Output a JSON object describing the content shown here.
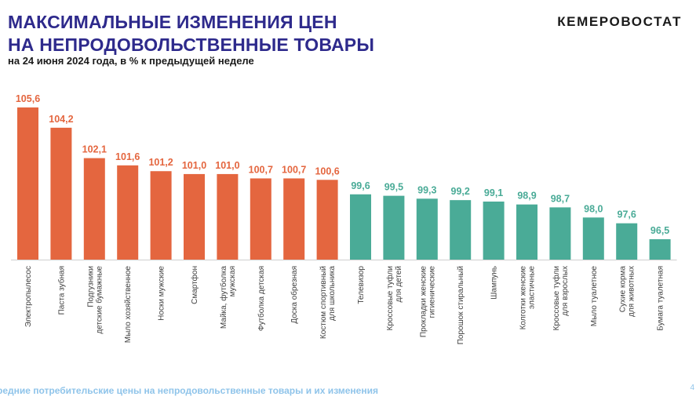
{
  "header": {
    "title_line1": "МАКСИМАЛЬНЫЕ ИЗМЕНЕНИЯ ЦЕН",
    "title_line2": "НА НЕПРОДОВОЛЬСТВЕННЫЕ ТОВАРЫ",
    "subtitle": "на 24 июня 2024 года, в % к предыдущей неделе",
    "brand": "КЕМЕРОВОСТАТ"
  },
  "footer": {
    "text": "редние потребительские цены на непродовольственные товары и их изменения",
    "page_number": "4"
  },
  "colors": {
    "increase": "#e4663f",
    "decrease": "#4aab97",
    "title": "#2e2a8c"
  },
  "chart_data": {
    "type": "bar",
    "title": "",
    "xlabel": "",
    "ylabel": "",
    "grid": false,
    "legend": "none",
    "value_labels": [
      "105,6",
      "104,2",
      "102,1",
      "101,6",
      "101,2",
      "101,0",
      "101,0",
      "100,7",
      "100,7",
      "100,6",
      "99,6",
      "99,5",
      "99,3",
      "99,2",
      "99,1",
      "98,9",
      "98,7",
      "98,0",
      "97,6",
      "96,5"
    ],
    "values": [
      105.6,
      104.2,
      102.1,
      101.6,
      101.2,
      101.0,
      101.0,
      100.7,
      100.7,
      100.6,
      99.6,
      99.5,
      99.3,
      99.2,
      99.1,
      98.9,
      98.7,
      98.0,
      97.6,
      96.5
    ],
    "categories": [
      [
        "Электропылесос"
      ],
      [
        "Паста зубная"
      ],
      [
        "Подгузники",
        "детские бумажные"
      ],
      [
        "Мыло хозяйственное"
      ],
      [
        "Носки мужские"
      ],
      [
        "Смартфон"
      ],
      [
        "Майка, футболка",
        "мужская"
      ],
      [
        "Футболка детская"
      ],
      [
        "Доска обрезная"
      ],
      [
        "Костюм спортивный",
        "для школьника"
      ],
      [
        "Телевизор"
      ],
      [
        "Кроссовые туфли",
        "для детей"
      ],
      [
        "Прокладки женские",
        "гигиенические"
      ],
      [
        "Порошок стиральный"
      ],
      [
        "Шампунь"
      ],
      [
        "Колготки женские",
        "эластичные"
      ],
      [
        "Кроссовые туфли",
        "для взрослых"
      ],
      [
        "Мыло туалетное"
      ],
      [
        "Сухие корма",
        "для животных"
      ],
      [
        "Бумага туалетная"
      ]
    ]
  }
}
